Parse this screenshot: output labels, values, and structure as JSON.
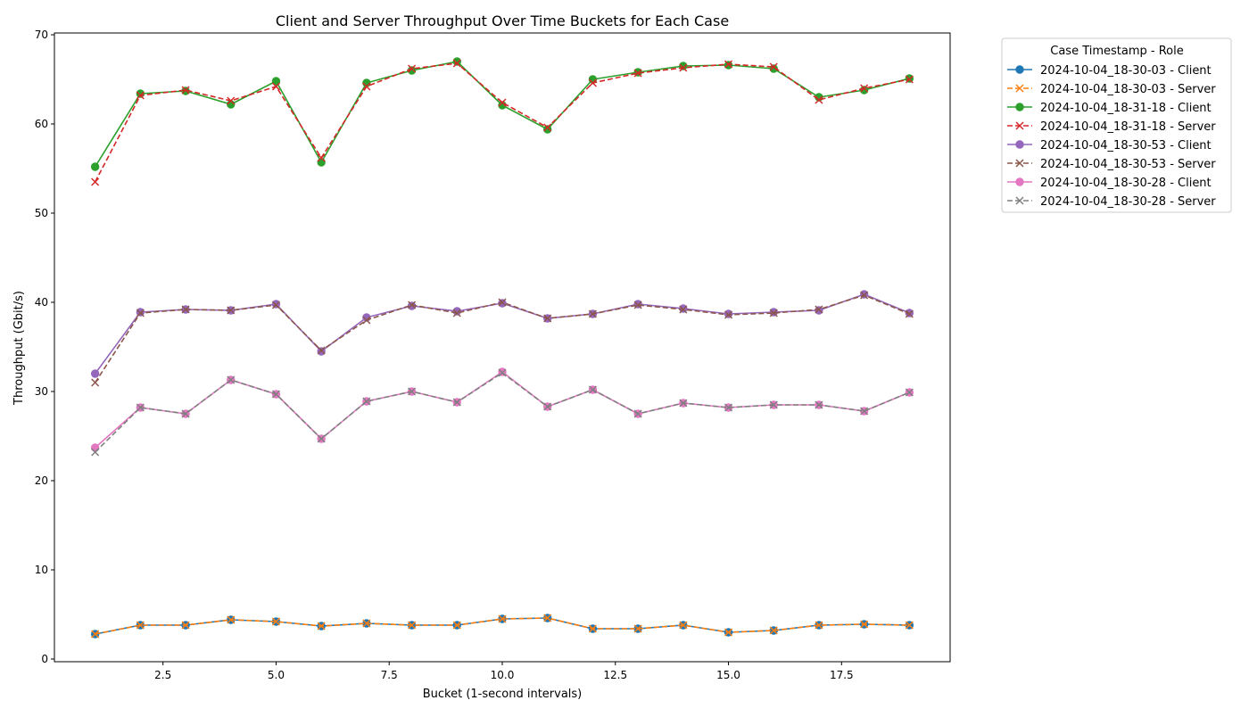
{
  "chart_data": {
    "type": "line",
    "title": "Client and Server Throughput Over Time Buckets for Each Case",
    "xlabel": "Bucket (1-second intervals)",
    "ylabel": "Throughput (Gbit/s)",
    "xlim": [
      0.1,
      19.9
    ],
    "ylim": [
      -0.3,
      70.2
    ],
    "xticks": [
      2.5,
      5.0,
      7.5,
      10.0,
      12.5,
      15.0,
      17.5
    ],
    "xtick_labels": [
      "2.5",
      "5.0",
      "7.5",
      "10.0",
      "12.5",
      "15.0",
      "17.5"
    ],
    "yticks": [
      0,
      10,
      20,
      30,
      40,
      50,
      60,
      70
    ],
    "ytick_labels": [
      "0",
      "10",
      "20",
      "30",
      "40",
      "50",
      "60",
      "70"
    ],
    "grid": false,
    "legend": {
      "title": "Case Timestamp - Role",
      "placement": "outside-upper-right"
    },
    "x": [
      1,
      2,
      3,
      4,
      5,
      6,
      7,
      8,
      9,
      10,
      11,
      12,
      13,
      14,
      15,
      16,
      17,
      18,
      19
    ],
    "series": [
      {
        "name": "2024-10-04_18-30-03 - Client",
        "color": "#1f77b4",
        "linestyle": "solid",
        "marker": "circle",
        "values": [
          2.8,
          3.8,
          3.8,
          4.4,
          4.2,
          3.7,
          4.0,
          3.8,
          3.8,
          4.5,
          4.6,
          3.4,
          3.4,
          3.8,
          3.0,
          3.2,
          3.8,
          3.9,
          3.8
        ]
      },
      {
        "name": "2024-10-04_18-30-03 - Server",
        "color": "#ff7f0e",
        "linestyle": "dashed",
        "marker": "x",
        "values": [
          2.8,
          3.8,
          3.8,
          4.4,
          4.2,
          3.7,
          4.0,
          3.8,
          3.8,
          4.5,
          4.6,
          3.4,
          3.4,
          3.8,
          3.0,
          3.2,
          3.8,
          3.9,
          3.8
        ]
      },
      {
        "name": "2024-10-04_18-31-18 - Client",
        "color": "#2ca02c",
        "linestyle": "solid",
        "marker": "circle",
        "values": [
          55.2,
          63.4,
          63.7,
          62.2,
          64.8,
          55.7,
          64.6,
          66.0,
          67.0,
          62.1,
          59.4,
          65.0,
          65.8,
          66.5,
          66.6,
          66.2,
          63.0,
          63.8,
          65.1
        ]
      },
      {
        "name": "2024-10-04_18-31-18 - Server",
        "color": "#d62728",
        "linestyle": "dashed",
        "marker": "x",
        "values": [
          53.5,
          63.2,
          63.8,
          62.6,
          64.2,
          56.2,
          64.2,
          66.2,
          66.8,
          62.4,
          59.6,
          64.6,
          65.7,
          66.3,
          66.7,
          66.4,
          62.7,
          64.0,
          65.0
        ]
      },
      {
        "name": "2024-10-04_18-30-53 - Client",
        "color": "#9467bd",
        "linestyle": "solid",
        "marker": "circle",
        "values": [
          32.0,
          38.9,
          39.2,
          39.1,
          39.8,
          34.5,
          38.3,
          39.6,
          39.0,
          39.9,
          38.2,
          38.7,
          39.8,
          39.3,
          38.7,
          38.9,
          39.1,
          40.9,
          38.8
        ]
      },
      {
        "name": "2024-10-04_18-30-53 - Server",
        "color": "#8c564b",
        "linestyle": "dashed",
        "marker": "x",
        "values": [
          31.0,
          38.8,
          39.2,
          39.1,
          39.7,
          34.6,
          38.0,
          39.7,
          38.8,
          40.0,
          38.2,
          38.7,
          39.7,
          39.2,
          38.6,
          38.8,
          39.2,
          40.8,
          38.7
        ]
      },
      {
        "name": "2024-10-04_18-30-28 - Client",
        "color": "#e377c2",
        "linestyle": "solid",
        "marker": "circle",
        "values": [
          23.7,
          28.2,
          27.5,
          31.3,
          29.7,
          24.7,
          28.9,
          30.0,
          28.8,
          32.2,
          28.3,
          30.2,
          27.5,
          28.7,
          28.2,
          28.5,
          28.5,
          27.8,
          29.9
        ]
      },
      {
        "name": "2024-10-04_18-30-28 - Server",
        "color": "#7f7f7f",
        "linestyle": "dashed",
        "marker": "x",
        "values": [
          23.2,
          28.2,
          27.5,
          31.3,
          29.7,
          24.7,
          28.9,
          30.0,
          28.8,
          32.1,
          28.3,
          30.2,
          27.5,
          28.7,
          28.2,
          28.5,
          28.5,
          27.8,
          29.9
        ]
      }
    ]
  }
}
